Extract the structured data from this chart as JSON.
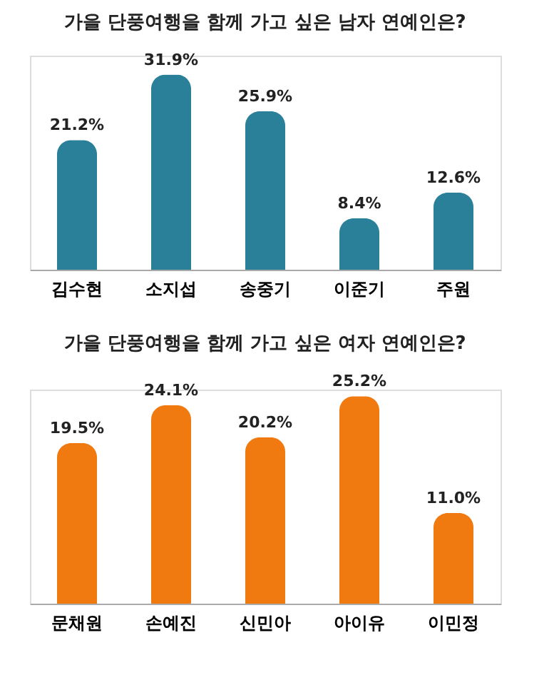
{
  "chart_data": [
    {
      "type": "bar",
      "title": "가을 단풍여행을 함께 가고 싶은 남자 연예인은?",
      "categories": [
        "김수현",
        "소지섭",
        "송중기",
        "이준기",
        "주원"
      ],
      "values": [
        21.2,
        31.9,
        25.9,
        8.4,
        12.6
      ],
      "value_labels": [
        "21.2%",
        "31.9%",
        "25.9%",
        "8.4%",
        "12.6%"
      ],
      "color": "#2a7f99",
      "grid": false,
      "tick_labels": "x"
    },
    {
      "type": "bar",
      "title": "가을 단풍여행을 함께 가고 싶은 여자 연예인은?",
      "categories": [
        "문채원",
        "손예진",
        "신민아",
        "아이유",
        "이민정"
      ],
      "values": [
        19.5,
        24.1,
        20.2,
        25.2,
        11.0
      ],
      "value_labels": [
        "19.5%",
        "24.1%",
        "20.2%",
        "25.2%",
        "11.0%"
      ],
      "color": "#f07a10",
      "grid": false,
      "tick_labels": "x"
    }
  ]
}
